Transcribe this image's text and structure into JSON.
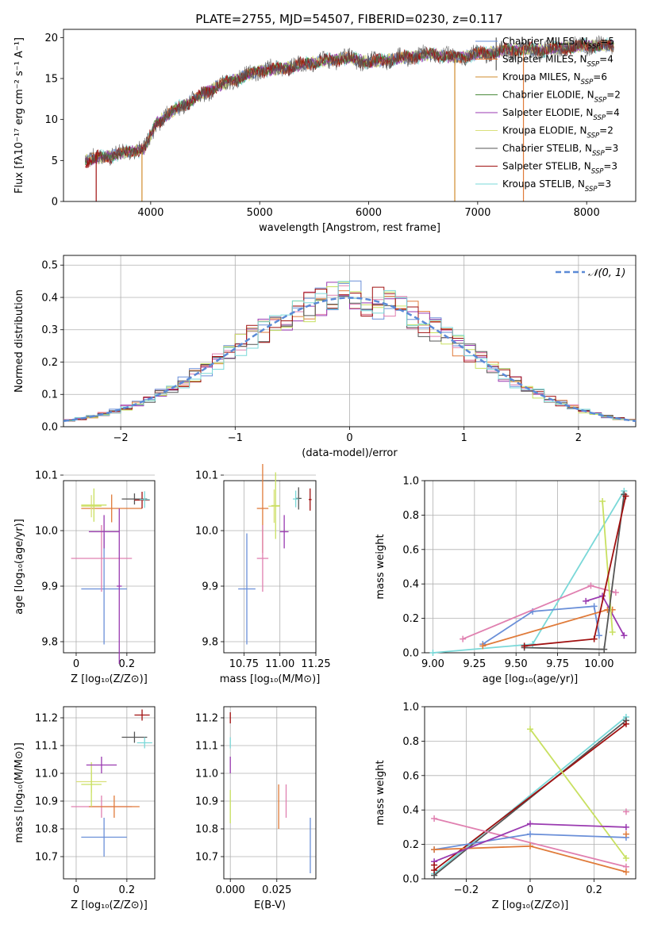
{
  "figure_title": "PLATE=2755, MJD=54507, FIBERID=0230, z=0.117",
  "colors": {
    "Chabrier MILES": "#6a8fd8",
    "Salpeter MILES": "#e07b3a",
    "Kroupa MILES": "#d18b2c",
    "Chabrier ELODIE": "#4a8a3a",
    "Salpeter ELODIE": "#9a3ab0",
    "Kroupa ELODIE": "#d9e07a",
    "Chabrier STELIB": "#555555",
    "Salpeter STELIB": "#a01010",
    "Kroupa STELIB": "#7ad8d8",
    "pink": "#e080b0",
    "lime": "#c8e060",
    "gaussian": "#5b8ad6"
  },
  "chart_data": [
    {
      "id": "spectrum",
      "type": "line",
      "xlabel": "wavelength [Angstrom, rest frame]",
      "ylabel": "Flux [fλ10⁻¹⁷ erg cm⁻² s⁻¹ A⁻¹]",
      "xlim": [
        3200,
        8450
      ],
      "ylim": [
        0,
        21
      ],
      "xticks": [
        4000,
        5000,
        6000,
        7000,
        8000
      ],
      "yticks": [
        0,
        5,
        10,
        15,
        20
      ],
      "grid": false,
      "legend_position": "right",
      "legend": [
        {
          "name": "Chabrier MILES",
          "sub": "SSP",
          "n": "5"
        },
        {
          "name": "Salpeter MILES",
          "sub": "SSP",
          "n": "4"
        },
        {
          "name": "Kroupa MILES",
          "sub": "SSP",
          "n": "6"
        },
        {
          "name": "Chabrier ELODIE",
          "sub": "SSP",
          "n": "2"
        },
        {
          "name": "Salpeter ELODIE",
          "sub": "SSP",
          "n": "4"
        },
        {
          "name": "Kroupa ELODIE",
          "sub": "SSP",
          "n": "2"
        },
        {
          "name": "Chabrier STELIB",
          "sub": "SSP",
          "n": "3"
        },
        {
          "name": "Salpeter STELIB",
          "sub": "SSP",
          "n": "3"
        },
        {
          "name": "Kroupa STELIB",
          "sub": "SSP",
          "n": "3"
        }
      ],
      "continuum": [
        [
          3400,
          5.0
        ],
        [
          3600,
          5.5
        ],
        [
          3800,
          6.0
        ],
        [
          3950,
          6.5
        ],
        [
          4050,
          9.5
        ],
        [
          4200,
          11.0
        ],
        [
          4400,
          12.5
        ],
        [
          4600,
          14.0
        ],
        [
          4800,
          15.0
        ],
        [
          5000,
          16.0
        ],
        [
          5200,
          16.2
        ],
        [
          5500,
          17.0
        ],
        [
          5800,
          17.5
        ],
        [
          6000,
          17.0
        ],
        [
          6300,
          17.5
        ],
        [
          6600,
          18.0
        ],
        [
          6800,
          17.5
        ],
        [
          7000,
          18.0
        ],
        [
          7300,
          18.5
        ],
        [
          7600,
          18.5
        ],
        [
          8000,
          19.0
        ],
        [
          8250,
          19.0
        ]
      ],
      "spikes": [
        {
          "x": 3500,
          "y0": 0,
          "y1": 6,
          "series": "Salpeter STELIB"
        },
        {
          "x": 3920,
          "y0": 0,
          "y1": 6,
          "series": "Kroupa MILES"
        },
        {
          "x": 6790,
          "y0": 0,
          "y1": 17.5,
          "series": "Kroupa MILES"
        },
        {
          "x": 7170,
          "y0": 16,
          "y1": 20,
          "series": "Chabrier STELIB"
        },
        {
          "x": 7420,
          "y0": 0,
          "y1": 19,
          "series": "Salpeter MILES"
        }
      ]
    },
    {
      "id": "residuals",
      "type": "histogram",
      "xlabel": "(data-model)/error",
      "ylabel": "Normed distribution",
      "xlim": [
        -2.5,
        2.5
      ],
      "ylim": [
        0,
        0.53
      ],
      "xticks": [
        -2,
        -1,
        0,
        1,
        2
      ],
      "yticks": [
        0.0,
        0.1,
        0.2,
        0.3,
        0.4,
        0.5
      ],
      "grid": true,
      "legend_position": "top-right",
      "gaussian_label": "𝒩(0, 1)",
      "bin_width": 0.1
    },
    {
      "id": "age_vs_Z",
      "type": "scatter",
      "xlabel": "Z [log₁₀(Z/Z⊙)]",
      "ylabel": "age  [log₁₀(age/yr)]",
      "xlim": [
        -0.05,
        0.31
      ],
      "ylim": [
        9.78,
        10.09
      ],
      "xticks": [
        0.0,
        0.2
      ],
      "yticks": [
        9.8,
        9.9,
        10.0,
        10.1
      ],
      "grid": true,
      "points": [
        {
          "x": 0.11,
          "y": 9.895,
          "xerr": 0.09,
          "yerr": 0.1,
          "series": "Chabrier MILES"
        },
        {
          "x": 0.14,
          "y": 10.04,
          "xerr": 0.12,
          "yerr": 0.025,
          "series": "Salpeter MILES"
        },
        {
          "x": 0.1,
          "y": 9.95,
          "xerr": 0.12,
          "yerr": 0.06,
          "series": "pink"
        },
        {
          "x": 0.11,
          "y": 9.998,
          "xerr": 0.06,
          "yerr": 0.03,
          "series": "Salpeter ELODIE"
        },
        {
          "x": 0.06,
          "y": 10.044,
          "xerr": 0.04,
          "yerr": 0.02,
          "series": "Kroupa ELODIE"
        },
        {
          "x": 0.07,
          "y": 10.046,
          "xerr": 0.05,
          "yerr": 0.03,
          "series": "lime"
        },
        {
          "x": 0.17,
          "y": 9.9,
          "xerr": 0.01,
          "yerr": 0.14,
          "series": "Salpeter ELODIE"
        },
        {
          "x": 0.23,
          "y": 10.057,
          "xerr": 0.05,
          "yerr": 0.01,
          "series": "Chabrier STELIB"
        },
        {
          "x": 0.26,
          "y": 10.055,
          "xerr": 0.03,
          "yerr": 0.015,
          "series": "Salpeter STELIB"
        },
        {
          "x": 0.27,
          "y": 10.056,
          "xerr": 0.02,
          "yerr": 0.015,
          "series": "Kroupa STELIB"
        }
      ]
    },
    {
      "id": "age_vs_mass",
      "type": "scatter",
      "xlabel": "mass [log₁₀(M/M⊙)]",
      "ylabel": "",
      "xlim": [
        10.61,
        11.25
      ],
      "ylim": [
        9.78,
        10.09
      ],
      "xticks": [
        10.75,
        11.0,
        11.25
      ],
      "xticklabels": [
        "10.75",
        "11.00",
        "11.25"
      ],
      "yticks": [
        9.8,
        9.9,
        10.0,
        10.1
      ],
      "grid": true,
      "points": [
        {
          "x": 10.77,
          "y": 9.895,
          "xerr": 0.06,
          "yerr": 0.1,
          "series": "Chabrier MILES"
        },
        {
          "x": 10.88,
          "y": 10.04,
          "xerr": 0.04,
          "yerr": 0.08,
          "series": "Salpeter MILES"
        },
        {
          "x": 10.88,
          "y": 9.95,
          "xerr": 0.04,
          "yerr": 0.06,
          "series": "pink"
        },
        {
          "x": 11.03,
          "y": 9.998,
          "xerr": 0.03,
          "yerr": 0.03,
          "series": "Salpeter ELODIE"
        },
        {
          "x": 10.96,
          "y": 10.044,
          "xerr": 0.04,
          "yerr": 0.03,
          "series": "Kroupa ELODIE"
        },
        {
          "x": 10.97,
          "y": 10.045,
          "xerr": 0.03,
          "yerr": 0.06,
          "series": "lime"
        },
        {
          "x": 11.13,
          "y": 10.058,
          "xerr": 0.02,
          "yerr": 0.02,
          "series": "Chabrier STELIB"
        },
        {
          "x": 11.21,
          "y": 10.056,
          "xerr": 0.01,
          "yerr": 0.02,
          "series": "Salpeter STELIB"
        },
        {
          "x": 11.11,
          "y": 10.057,
          "xerr": 0.02,
          "yerr": 0.015,
          "series": "Kroupa STELIB"
        }
      ]
    },
    {
      "id": "weight_vs_age",
      "type": "line",
      "xlabel": "age  [log₁₀(age/yr)]",
      "ylabel": "mass weight",
      "xlim": [
        8.95,
        10.22
      ],
      "ylim": [
        0,
        1.0
      ],
      "xticks": [
        9.0,
        9.25,
        9.5,
        9.75,
        10.0
      ],
      "xticklabels": [
        "9.00",
        "9.25",
        "9.50",
        "9.75",
        "10.00"
      ],
      "yticks": [
        0.0,
        0.2,
        0.4,
        0.6,
        0.8,
        1.0
      ],
      "grid": true,
      "series": [
        {
          "series": "Kroupa STELIB",
          "x": [
            9.0,
            9.6,
            10.15
          ],
          "y": [
            0.0,
            0.05,
            0.94
          ]
        },
        {
          "series": "Chabrier MILES",
          "x": [
            9.3,
            9.6,
            9.97,
            10.0
          ],
          "y": [
            0.05,
            0.24,
            0.27,
            0.1
          ]
        },
        {
          "series": "Salpeter MILES",
          "x": [
            9.3,
            10.05,
            10.08
          ],
          "y": [
            0.04,
            0.25,
            0.25
          ]
        },
        {
          "series": "pink",
          "x": [
            9.18,
            9.95,
            10.1
          ],
          "y": [
            0.08,
            0.39,
            0.35
          ]
        },
        {
          "series": "Salpeter ELODIE",
          "x": [
            9.92,
            10.02,
            10.15
          ],
          "y": [
            0.3,
            0.33,
            0.1
          ]
        },
        {
          "series": "lime",
          "x": [
            10.02,
            10.08
          ],
          "y": [
            0.88,
            0.12
          ]
        },
        {
          "series": "Chabrier STELIB",
          "x": [
            9.55,
            10.03,
            10.15
          ],
          "y": [
            0.03,
            0.02,
            0.92
          ]
        },
        {
          "series": "Salpeter STELIB",
          "x": [
            9.55,
            9.97,
            10.16
          ],
          "y": [
            0.04,
            0.08,
            0.91
          ]
        }
      ]
    },
    {
      "id": "mass_vs_Z",
      "type": "scatter",
      "xlabel": "Z [log₁₀(Z/Z⊙)]",
      "ylabel": "mass [log₁₀(M/M⊙)]",
      "xlim": [
        -0.05,
        0.31
      ],
      "ylim": [
        10.62,
        11.24
      ],
      "xticks": [
        0.0,
        0.2
      ],
      "yticks": [
        10.7,
        10.8,
        10.9,
        11.0,
        11.1,
        11.2
      ],
      "grid": true,
      "points": [
        {
          "x": 0.11,
          "y": 10.77,
          "xerr": 0.09,
          "yerr": 0.07,
          "series": "Chabrier MILES"
        },
        {
          "x": 0.1,
          "y": 10.88,
          "xerr": 0.12,
          "yerr": 0.04,
          "series": "pink"
        },
        {
          "x": 0.15,
          "y": 10.88,
          "xerr": 0.1,
          "yerr": 0.04,
          "series": "Salpeter MILES"
        },
        {
          "x": 0.06,
          "y": 10.97,
          "xerr": 0.06,
          "yerr": 0.04,
          "series": "Kroupa ELODIE"
        },
        {
          "x": 0.06,
          "y": 10.96,
          "xerr": 0.04,
          "yerr": 0.08,
          "series": "lime"
        },
        {
          "x": 0.1,
          "y": 11.03,
          "xerr": 0.06,
          "yerr": 0.03,
          "series": "Salpeter ELODIE"
        },
        {
          "x": 0.23,
          "y": 11.13,
          "xerr": 0.05,
          "yerr": 0.02,
          "series": "Chabrier STELIB"
        },
        {
          "x": 0.26,
          "y": 11.21,
          "xerr": 0.03,
          "yerr": 0.02,
          "series": "Salpeter STELIB"
        },
        {
          "x": 0.27,
          "y": 11.11,
          "xerr": 0.03,
          "yerr": 0.02,
          "series": "Kroupa STELIB"
        }
      ]
    },
    {
      "id": "mass_vs_ebv",
      "type": "scatter",
      "xlabel": "E(B-V)",
      "ylabel": "",
      "xlim": [
        -0.0035,
        0.046
      ],
      "ylim": [
        10.62,
        11.24
      ],
      "xticks": [
        0.0,
        0.025
      ],
      "xticklabels": [
        "0.000",
        "0.025"
      ],
      "yticks": [
        10.7,
        10.8,
        10.9,
        11.0,
        11.1,
        11.2
      ],
      "grid": true,
      "points": [
        {
          "x": 0.0,
          "y": 11.2,
          "xerr": 0,
          "yerr": 0.02,
          "series": "Salpeter STELIB"
        },
        {
          "x": 0.0,
          "y": 11.11,
          "xerr": 0,
          "yerr": 0.02,
          "series": "Kroupa STELIB"
        },
        {
          "x": 0.0,
          "y": 11.03,
          "xerr": 0,
          "yerr": 0.03,
          "series": "Salpeter ELODIE"
        },
        {
          "x": 0.0,
          "y": 10.88,
          "xerr": 0,
          "yerr": 0.06,
          "series": "lime"
        },
        {
          "x": 0.026,
          "y": 10.88,
          "xerr": 0,
          "yerr": 0.08,
          "series": "Salpeter MILES"
        },
        {
          "x": 0.03,
          "y": 10.9,
          "xerr": 0,
          "yerr": 0.06,
          "series": "pink"
        },
        {
          "x": 0.043,
          "y": 10.74,
          "xerr": 0,
          "yerr": 0.1,
          "series": "Chabrier MILES"
        }
      ]
    },
    {
      "id": "weight_vs_Z",
      "type": "line",
      "xlabel": "Z [log₁₀(Z/Z⊙)]",
      "ylabel": "mass weight",
      "xlim": [
        -0.33,
        0.33
      ],
      "ylim": [
        0,
        1.0
      ],
      "xticks": [
        -0.2,
        0.0,
        0.2
      ],
      "yticks": [
        0.0,
        0.2,
        0.4,
        0.6,
        0.8,
        1.0
      ],
      "grid": true,
      "series": [
        {
          "series": "Kroupa STELIB",
          "x": [
            -0.3,
            0.3
          ],
          "y": [
            0.03,
            0.94
          ]
        },
        {
          "series": "Chabrier STELIB",
          "x": [
            -0.3,
            0.3
          ],
          "y": [
            0.02,
            0.92
          ]
        },
        {
          "series": "Salpeter STELIB",
          "x": [
            -0.3,
            0.3
          ],
          "y": [
            0.05,
            0.9
          ]
        },
        {
          "series": "lime",
          "x": [
            0.0,
            0.3
          ],
          "y": [
            0.87,
            0.12
          ]
        },
        {
          "series": "pink",
          "x": [
            -0.3,
            0.3
          ],
          "y": [
            0.35,
            0.07
          ]
        },
        {
          "series": "Chabrier MILES",
          "x": [
            -0.3,
            0.0,
            0.3
          ],
          "y": [
            0.17,
            0.26,
            0.24
          ]
        },
        {
          "series": "Salpeter MILES",
          "x": [
            -0.3,
            0.0,
            0.3
          ],
          "y": [
            0.17,
            0.19,
            0.04
          ]
        },
        {
          "series": "Salpeter ELODIE",
          "x": [
            -0.3,
            0.0,
            0.3
          ],
          "y": [
            0.1,
            0.32,
            0.3
          ]
        },
        {
          "series": "Salpeter STELIB",
          "x": [
            -0.3
          ],
          "y": [
            0.08
          ]
        },
        {
          "series": "pink",
          "x": [
            0.3
          ],
          "y": [
            0.39
          ]
        },
        {
          "series": "Salpeter MILES",
          "x": [
            0.3
          ],
          "y": [
            0.26
          ]
        }
      ]
    }
  ]
}
